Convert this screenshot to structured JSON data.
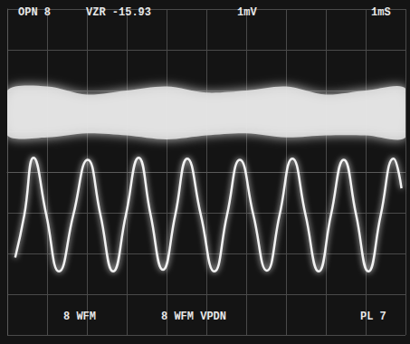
{
  "chart_data": {
    "type": "line",
    "xlim": [
      0,
      10
    ],
    "xticks": [
      0,
      1,
      2,
      3,
      4,
      5,
      6,
      7,
      8,
      9,
      10
    ],
    "ylim": [
      -4,
      4
    ],
    "yticks": [
      -4,
      -3,
      -2,
      -1,
      0,
      1,
      2,
      3,
      4
    ],
    "grid": true,
    "tick_labels": false,
    "annotations": [
      {
        "text": "OPN 8"
      },
      {
        "text": "VZR -15.93"
      },
      {
        "text": "1mV"
      },
      {
        "text": "1mS"
      },
      {
        "text": "8 WFM"
      },
      {
        "text": "8 WFM VPDN"
      },
      {
        "text": "PL 7"
      }
    ],
    "series": [
      {
        "type": "band",
        "color": "#e6e6e6",
        "x": [
          0,
          1,
          2,
          3,
          4,
          5,
          6,
          7,
          8,
          9,
          10
        ],
        "upper": [
          2.0,
          2.1,
          1.9,
          2.0,
          2.1,
          1.95,
          2.0,
          2.1,
          1.9,
          2.0,
          2.05
        ],
        "lower": [
          0.9,
          0.85,
          0.95,
          0.9,
          0.8,
          0.9,
          0.95,
          0.85,
          0.9,
          0.9,
          0.85
        ]
      },
      {
        "type": "line",
        "color": "#f2f2f2",
        "x": [
          0.2,
          0.43,
          0.66,
          0.98,
          1.3,
          1.66,
          2.02,
          2.34,
          2.66,
          2.98,
          3.3,
          3.6,
          3.91,
          4.22,
          4.52,
          4.86,
          5.2,
          5.52,
          5.84,
          6.18,
          6.52,
          6.84,
          7.16,
          7.49,
          7.82,
          8.13,
          8.45,
          8.76,
          9.07,
          9.38,
          9.7,
          9.9
        ],
        "values": [
          -2.1,
          -1.05,
          0.35,
          -1.05,
          -2.44,
          -1.05,
          0.3,
          -1.05,
          -2.44,
          -1.05,
          0.35,
          -1.05,
          -2.4,
          -1.05,
          0.33,
          -1.05,
          -2.44,
          -1.05,
          0.3,
          -1.05,
          -2.42,
          -1.05,
          0.33,
          -1.05,
          -2.44,
          -1.05,
          0.3,
          -1.05,
          -2.44,
          -1.05,
          0.33,
          -0.4
        ]
      }
    ]
  }
}
